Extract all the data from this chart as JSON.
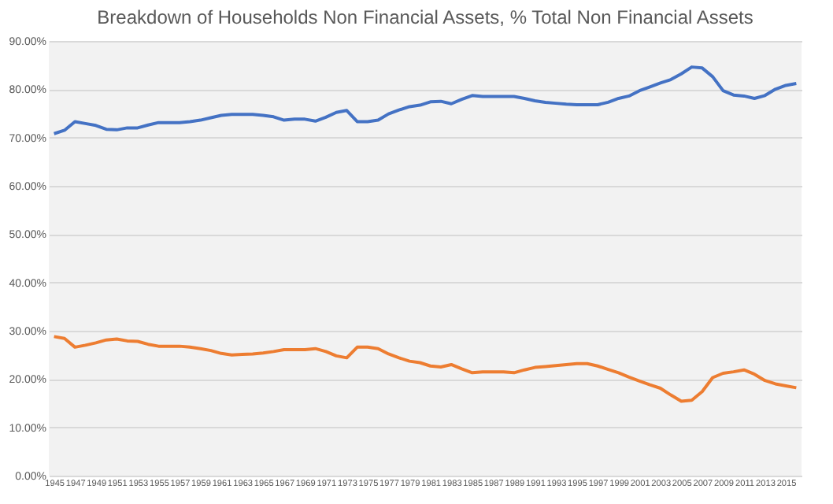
{
  "chart_data": {
    "type": "line",
    "title": "Breakdown of Households Non Financial Assets, % Total Non Financial Assets",
    "categories": [
      "1945",
      null,
      "1947",
      null,
      "1949",
      null,
      "1951",
      null,
      "1953",
      null,
      "1955",
      null,
      "1957",
      null,
      "1959",
      null,
      "1961",
      null,
      "1963",
      null,
      "1965",
      null,
      "1967",
      null,
      "1969",
      null,
      "1971",
      null,
      "1973",
      null,
      "1975",
      null,
      "1977",
      null,
      "1979",
      null,
      "1981",
      null,
      "1983",
      null,
      "1985",
      null,
      "1987",
      null,
      "1989",
      null,
      "1991",
      null,
      "1993",
      null,
      "1995",
      null,
      "1997",
      null,
      "1999",
      null,
      "2001",
      null,
      "2003",
      null,
      "2005",
      null,
      "2007",
      null,
      "2009",
      null,
      "2011",
      null,
      "2013",
      null,
      "2015",
      null
    ],
    "series": [
      {
        "color": "#4472c4",
        "values": [
          70.8,
          71.5,
          73.3,
          72.9,
          72.5,
          71.7,
          71.6,
          72.0,
          72.0,
          72.6,
          73.1,
          73.1,
          73.1,
          73.3,
          73.6,
          74.1,
          74.6,
          74.8,
          74.8,
          74.8,
          74.6,
          74.3,
          73.6,
          73.8,
          73.8,
          73.4,
          74.2,
          75.2,
          75.6,
          73.3,
          73.3,
          73.6,
          74.9,
          75.7,
          76.4,
          76.7,
          77.4,
          77.5,
          77.0,
          77.9,
          78.7,
          78.5,
          78.5,
          78.5,
          78.5,
          78.1,
          77.6,
          77.3,
          77.1,
          76.9,
          76.8,
          76.8,
          76.8,
          77.3,
          78.1,
          78.6,
          79.7,
          80.5,
          81.3,
          82.0,
          83.2,
          84.6,
          84.4,
          82.6,
          79.7,
          78.8,
          78.6,
          78.1,
          78.7,
          80.0,
          80.8,
          81.2
        ]
      },
      {
        "color": "#ed7d31",
        "values": [
          28.8,
          28.4,
          26.6,
          27.0,
          27.5,
          28.1,
          28.3,
          27.9,
          27.8,
          27.2,
          26.8,
          26.8,
          26.8,
          26.6,
          26.3,
          25.9,
          25.3,
          25.0,
          25.1,
          25.2,
          25.4,
          25.7,
          26.1,
          26.1,
          26.1,
          26.3,
          25.7,
          24.8,
          24.4,
          26.6,
          26.6,
          26.3,
          25.2,
          24.4,
          23.7,
          23.4,
          22.7,
          22.5,
          23.0,
          22.1,
          21.3,
          21.5,
          21.5,
          21.5,
          21.3,
          21.9,
          22.4,
          22.6,
          22.8,
          23.0,
          23.2,
          23.2,
          22.7,
          22.0,
          21.3,
          20.4,
          19.6,
          18.8,
          18.1,
          16.7,
          15.4,
          15.6,
          17.4,
          20.3,
          21.2,
          21.5,
          21.9,
          21.0,
          19.7,
          19.0,
          18.6,
          18.2
        ]
      }
    ],
    "ylim": [
      0,
      90
    ],
    "yticks": [
      {
        "value": 0,
        "label": "0.00%"
      },
      {
        "value": 10,
        "label": "10.00%"
      },
      {
        "value": 20,
        "label": "20.00%"
      },
      {
        "value": 30,
        "label": "30.00%"
      },
      {
        "value": 40,
        "label": "40.00%"
      },
      {
        "value": 50,
        "label": "50.00%"
      },
      {
        "value": 60,
        "label": "60.00%"
      },
      {
        "value": 70,
        "label": "70.00%"
      },
      {
        "value": 80,
        "label": "80.00%"
      },
      {
        "value": 90,
        "label": "90.00%"
      }
    ],
    "grid": "y",
    "legend": false
  }
}
